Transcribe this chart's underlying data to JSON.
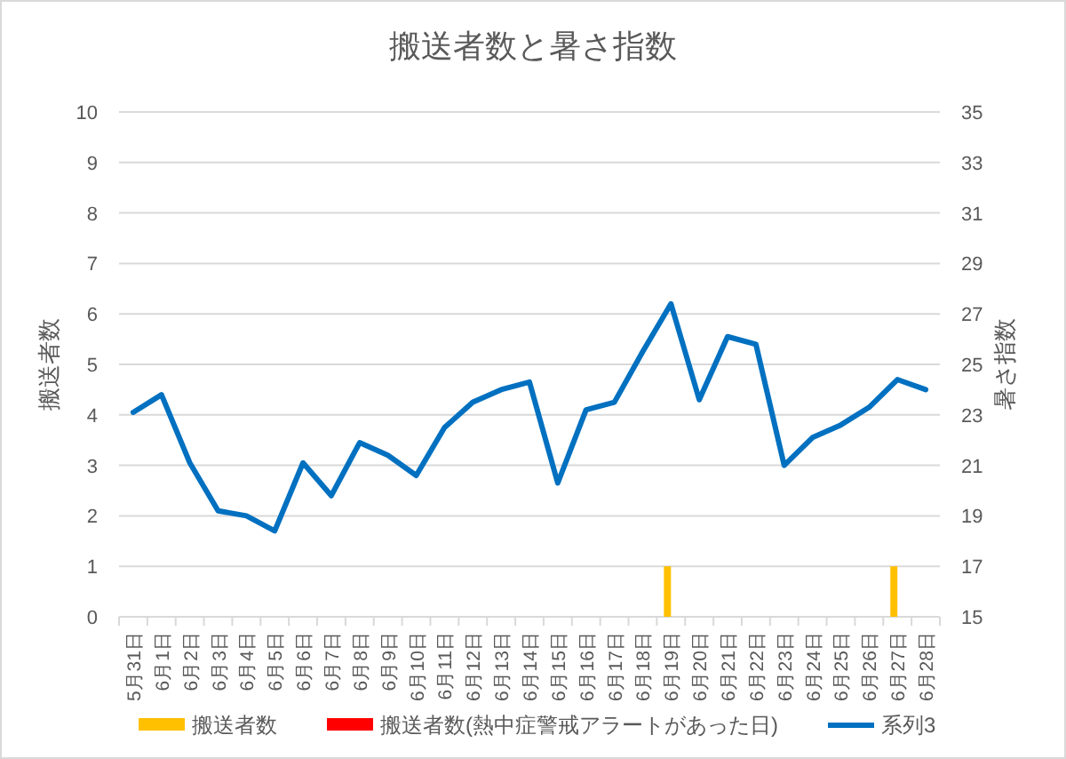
{
  "chart_data": {
    "type": "bar",
    "title": "搬送者数と暑さ指数",
    "ylabel": "搬送者数",
    "y2label": "暑さ指数",
    "categories": [
      "5月31日",
      "6月1日",
      "6月2日",
      "6月3日",
      "6月4日",
      "6月5日",
      "6月6日",
      "6月7日",
      "6月8日",
      "6月9日",
      "6月10日",
      "6月11日",
      "6月12日",
      "6月13日",
      "6月14日",
      "6月15日",
      "6月16日",
      "6月17日",
      "6月18日",
      "6月19日",
      "6月20日",
      "6月21日",
      "6月22日",
      "6月23日",
      "6月24日",
      "6月25日",
      "6月26日",
      "6月27日",
      "6月28日"
    ],
    "series": [
      {
        "name": "搬送者数",
        "color": "#ffc000",
        "values": [
          null,
          null,
          null,
          null,
          null,
          null,
          null,
          null,
          null,
          null,
          null,
          null,
          null,
          null,
          null,
          null,
          null,
          null,
          null,
          1,
          null,
          null,
          null,
          null,
          null,
          null,
          null,
          1,
          null
        ]
      },
      {
        "name": "搬送者数(熱中症警戒アラートがあった日)",
        "color": "#ff0000",
        "values": [
          null,
          null,
          null,
          null,
          null,
          null,
          null,
          null,
          null,
          null,
          null,
          null,
          null,
          null,
          null,
          null,
          null,
          null,
          null,
          null,
          null,
          null,
          null,
          null,
          null,
          null,
          null,
          null,
          null
        ]
      },
      {
        "name": "系列3",
        "type": "line",
        "axis": "y2",
        "color": "#0070c0",
        "values": [
          23.1,
          23.8,
          21.1,
          19.2,
          19.0,
          18.4,
          21.1,
          19.8,
          21.9,
          21.4,
          20.6,
          22.5,
          23.5,
          24.0,
          24.3,
          20.3,
          23.2,
          23.5,
          25.5,
          27.4,
          23.6,
          26.1,
          25.8,
          21.0,
          22.1,
          22.6,
          23.3,
          24.4,
          24.0
        ]
      }
    ],
    "ylim": [
      0,
      10
    ],
    "yticks": [
      0,
      1,
      2,
      3,
      4,
      5,
      6,
      7,
      8,
      9,
      10
    ],
    "y2lim": [
      15,
      35
    ],
    "y2ticks": [
      15,
      17,
      19,
      21,
      23,
      25,
      27,
      29,
      31,
      33,
      35
    ],
    "grid": "y",
    "legend": "bottom"
  }
}
